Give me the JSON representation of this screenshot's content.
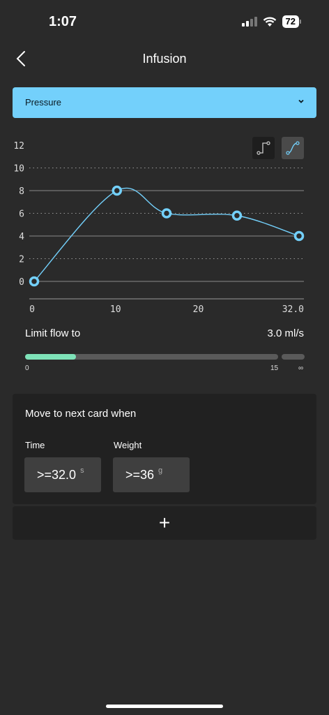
{
  "status_bar": {
    "time": "1:07",
    "battery": "72"
  },
  "header": {
    "title": "Infusion"
  },
  "dropdown": {
    "selected": "Pressure"
  },
  "chart_data": {
    "type": "line",
    "x_ticks": [
      "0",
      "10",
      "20",
      "32.0"
    ],
    "y_ticks": [
      "0",
      "2",
      "4",
      "6",
      "8",
      "10",
      "12"
    ],
    "ylim": [
      0,
      12
    ],
    "xlim": [
      0,
      32
    ],
    "series": [
      {
        "points": [
          [
            0,
            0
          ],
          [
            10,
            8
          ],
          [
            16,
            6
          ],
          [
            24.5,
            5.8
          ],
          [
            32,
            4
          ]
        ],
        "color": "#73d0fb"
      }
    ],
    "curve": "smooth"
  },
  "limit": {
    "label": "Limit flow to",
    "value": "3.0 ml/s",
    "fraction": 0.2,
    "min_label": "0",
    "mid_label": "15",
    "max_label": "∞"
  },
  "card": {
    "title": "Move to next card when",
    "time": {
      "label": "Time",
      "value": ">=32.0",
      "unit": "s"
    },
    "weight": {
      "label": "Weight",
      "value": ">=36",
      "unit": "g"
    }
  },
  "add_label": "+"
}
